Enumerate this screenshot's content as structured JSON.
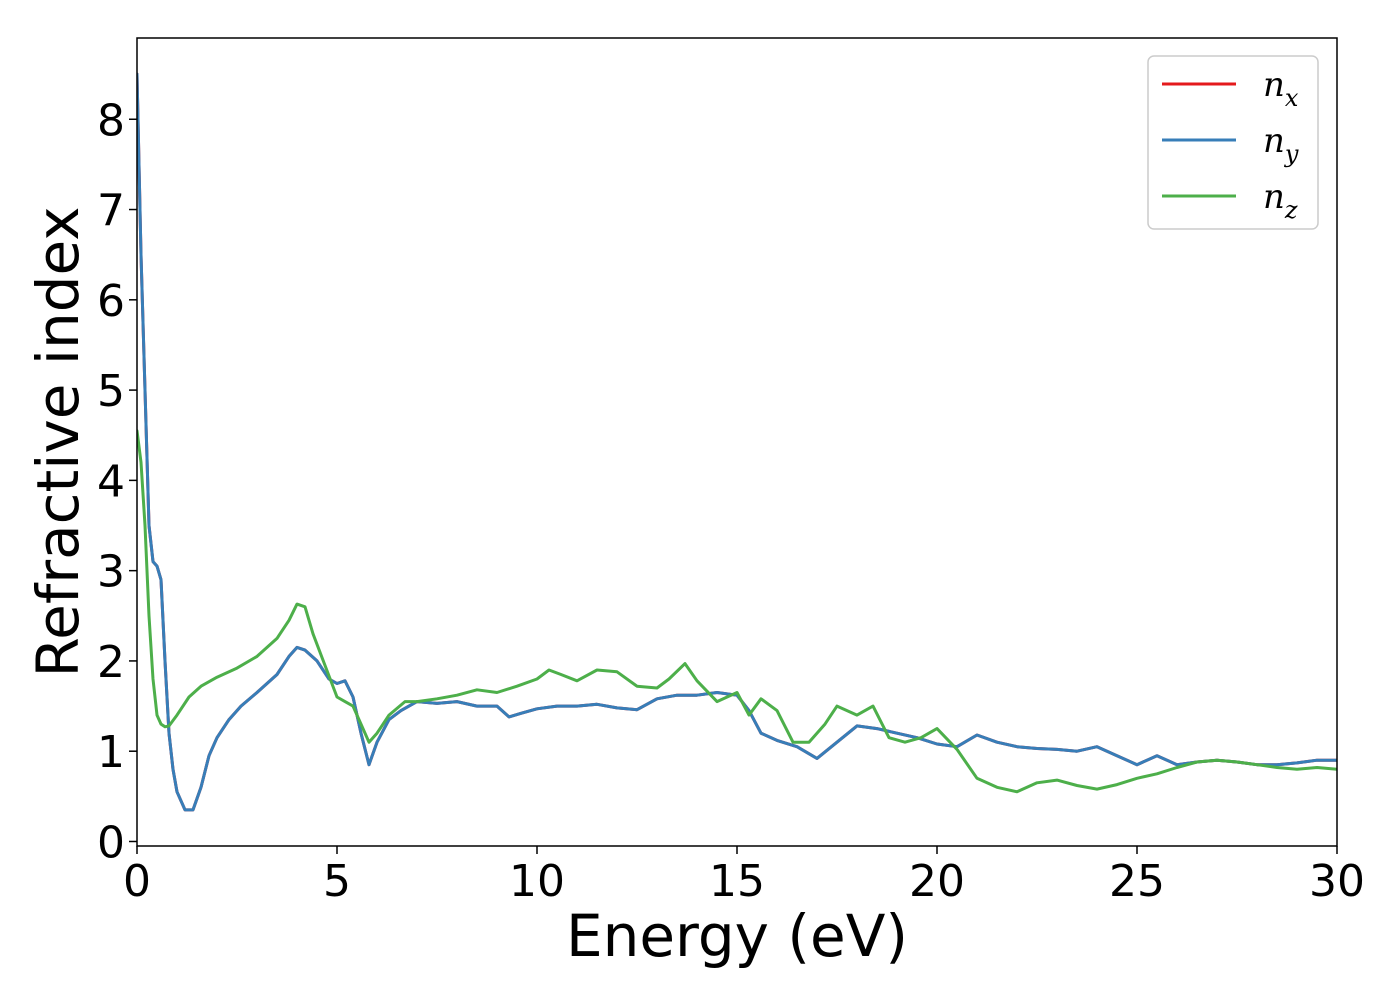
{
  "chart_data": {
    "type": "line",
    "title": "",
    "xlabel": "Energy (eV)",
    "ylabel": "Refractive index",
    "xlim": [
      0,
      30
    ],
    "ylim": [
      -0.05,
      8.9
    ],
    "xticks": [
      "0",
      "5",
      "10",
      "15",
      "20",
      "25",
      "30"
    ],
    "yticks": [
      "0",
      "1",
      "2",
      "3",
      "4",
      "5",
      "6",
      "7",
      "8"
    ],
    "grid": false,
    "legend_position": "top-right",
    "series": [
      {
        "name": "n",
        "subscript": "x",
        "color": "#e41a1c",
        "x": [
          0,
          0.1,
          0.2,
          0.3,
          0.4,
          0.5,
          0.6,
          0.7,
          0.8,
          0.9,
          1.0,
          1.2,
          1.4,
          1.6,
          1.8,
          2.0,
          2.3,
          2.6,
          3.0,
          3.5,
          3.8,
          4.0,
          4.2,
          4.5,
          4.8,
          5.0,
          5.2,
          5.4,
          5.6,
          5.8,
          6.0,
          6.3,
          6.6,
          7.0,
          7.5,
          8.0,
          8.5,
          9.0,
          9.3,
          9.6,
          10.0,
          10.5,
          11.0,
          11.5,
          12.0,
          12.5,
          13.0,
          13.5,
          14.0,
          14.5,
          15.0,
          15.3,
          15.6,
          16.0,
          16.5,
          17.0,
          17.5,
          18.0,
          18.5,
          19.0,
          19.5,
          20.0,
          20.5,
          21.0,
          21.5,
          22.0,
          22.5,
          23.0,
          23.5,
          24.0,
          24.5,
          25.0,
          25.5,
          26.0,
          26.5,
          27.0,
          27.5,
          28.0,
          28.5,
          29.0,
          29.5,
          30.0
        ],
        "y": [
          8.5,
          6.5,
          5.0,
          3.5,
          3.1,
          3.05,
          2.9,
          2.0,
          1.2,
          0.8,
          0.55,
          0.35,
          0.35,
          0.6,
          0.95,
          1.15,
          1.35,
          1.5,
          1.65,
          1.85,
          2.05,
          2.15,
          2.12,
          2.0,
          1.8,
          1.75,
          1.78,
          1.6,
          1.2,
          0.85,
          1.1,
          1.35,
          1.45,
          1.55,
          1.53,
          1.55,
          1.5,
          1.5,
          1.38,
          1.42,
          1.47,
          1.5,
          1.5,
          1.52,
          1.48,
          1.46,
          1.58,
          1.62,
          1.62,
          1.65,
          1.62,
          1.45,
          1.2,
          1.12,
          1.05,
          0.92,
          1.1,
          1.28,
          1.25,
          1.2,
          1.15,
          1.08,
          1.05,
          1.18,
          1.1,
          1.05,
          1.03,
          1.02,
          1.0,
          1.05,
          0.95,
          0.85,
          0.95,
          0.85,
          0.88,
          0.9,
          0.88,
          0.85,
          0.85,
          0.87,
          0.9,
          0.9
        ]
      },
      {
        "name": "n",
        "subscript": "y",
        "color": "#377eb8",
        "x": [
          0,
          0.1,
          0.2,
          0.3,
          0.4,
          0.5,
          0.6,
          0.7,
          0.8,
          0.9,
          1.0,
          1.2,
          1.4,
          1.6,
          1.8,
          2.0,
          2.3,
          2.6,
          3.0,
          3.5,
          3.8,
          4.0,
          4.2,
          4.5,
          4.8,
          5.0,
          5.2,
          5.4,
          5.6,
          5.8,
          6.0,
          6.3,
          6.6,
          7.0,
          7.5,
          8.0,
          8.5,
          9.0,
          9.3,
          9.6,
          10.0,
          10.5,
          11.0,
          11.5,
          12.0,
          12.5,
          13.0,
          13.5,
          14.0,
          14.5,
          15.0,
          15.3,
          15.6,
          16.0,
          16.5,
          17.0,
          17.5,
          18.0,
          18.5,
          19.0,
          19.5,
          20.0,
          20.5,
          21.0,
          21.5,
          22.0,
          22.5,
          23.0,
          23.5,
          24.0,
          24.5,
          25.0,
          25.5,
          26.0,
          26.5,
          27.0,
          27.5,
          28.0,
          28.5,
          29.0,
          29.5,
          30.0
        ],
        "y": [
          8.5,
          6.5,
          5.0,
          3.5,
          3.1,
          3.05,
          2.9,
          2.0,
          1.2,
          0.8,
          0.55,
          0.35,
          0.35,
          0.6,
          0.95,
          1.15,
          1.35,
          1.5,
          1.65,
          1.85,
          2.05,
          2.15,
          2.12,
          2.0,
          1.8,
          1.75,
          1.78,
          1.6,
          1.2,
          0.85,
          1.1,
          1.35,
          1.45,
          1.55,
          1.53,
          1.55,
          1.5,
          1.5,
          1.38,
          1.42,
          1.47,
          1.5,
          1.5,
          1.52,
          1.48,
          1.46,
          1.58,
          1.62,
          1.62,
          1.65,
          1.62,
          1.45,
          1.2,
          1.12,
          1.05,
          0.92,
          1.1,
          1.28,
          1.25,
          1.2,
          1.15,
          1.08,
          1.05,
          1.18,
          1.1,
          1.05,
          1.03,
          1.02,
          1.0,
          1.05,
          0.95,
          0.85,
          0.95,
          0.85,
          0.88,
          0.9,
          0.88,
          0.85,
          0.85,
          0.87,
          0.9,
          0.9
        ]
      },
      {
        "name": "n",
        "subscript": "z",
        "color": "#4daf4a",
        "x": [
          0,
          0.1,
          0.2,
          0.3,
          0.4,
          0.5,
          0.6,
          0.7,
          0.8,
          1.0,
          1.3,
          1.6,
          2.0,
          2.5,
          3.0,
          3.5,
          3.8,
          4.0,
          4.2,
          4.4,
          4.7,
          5.0,
          5.2,
          5.4,
          5.6,
          5.8,
          6.0,
          6.3,
          6.7,
          7.0,
          7.5,
          8.0,
          8.5,
          9.0,
          9.5,
          10.0,
          10.3,
          10.6,
          11.0,
          11.5,
          12.0,
          12.5,
          13.0,
          13.3,
          13.7,
          14.0,
          14.5,
          15.0,
          15.3,
          15.6,
          16.0,
          16.4,
          16.8,
          17.2,
          17.5,
          18.0,
          18.4,
          18.8,
          19.2,
          19.6,
          20.0,
          20.5,
          21.0,
          21.5,
          22.0,
          22.5,
          23.0,
          23.5,
          24.0,
          24.5,
          25.0,
          25.5,
          26.0,
          26.5,
          27.0,
          27.5,
          28.0,
          28.5,
          29.0,
          29.5,
          30.0
        ],
        "y": [
          4.55,
          4.2,
          3.5,
          2.5,
          1.8,
          1.4,
          1.3,
          1.27,
          1.28,
          1.4,
          1.6,
          1.72,
          1.82,
          1.92,
          2.05,
          2.25,
          2.45,
          2.63,
          2.6,
          2.3,
          1.95,
          1.6,
          1.55,
          1.5,
          1.3,
          1.1,
          1.2,
          1.4,
          1.55,
          1.55,
          1.58,
          1.62,
          1.68,
          1.65,
          1.72,
          1.8,
          1.9,
          1.85,
          1.78,
          1.9,
          1.88,
          1.72,
          1.7,
          1.8,
          1.97,
          1.78,
          1.55,
          1.65,
          1.4,
          1.58,
          1.45,
          1.1,
          1.1,
          1.3,
          1.5,
          1.4,
          1.5,
          1.15,
          1.1,
          1.15,
          1.25,
          1.02,
          0.7,
          0.6,
          0.55,
          0.65,
          0.68,
          0.62,
          0.58,
          0.63,
          0.7,
          0.75,
          0.82,
          0.88,
          0.9,
          0.88,
          0.85,
          0.82,
          0.8,
          0.82,
          0.8
        ]
      }
    ]
  }
}
